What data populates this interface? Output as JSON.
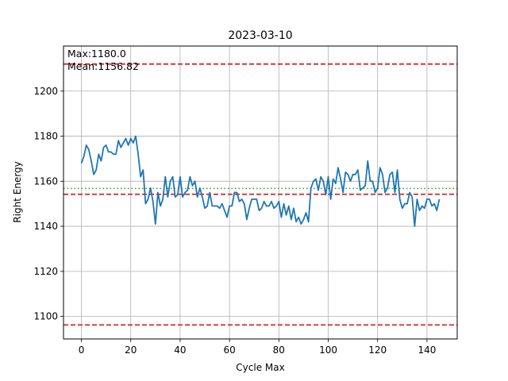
{
  "chart_data": {
    "type": "line",
    "title": "2023-03-10",
    "xlabel": "Cycle Max",
    "ylabel": "Right Energy",
    "xlim": [
      -7.25,
      152.25
    ],
    "ylim": [
      1090,
      1220
    ],
    "xticks": [
      0,
      20,
      40,
      60,
      80,
      100,
      120,
      140
    ],
    "yticks": [
      1100,
      1120,
      1140,
      1160,
      1180,
      1200
    ],
    "grid": true,
    "annotations": [
      "Max:1180.0",
      "Mean:1156.82"
    ],
    "reference_lines": [
      {
        "value": 1212.0,
        "style": "dashed",
        "color": "#d62728"
      },
      {
        "value": 1154.2,
        "style": "dashed",
        "color": "#d62728"
      },
      {
        "value": 1096.2,
        "style": "dashed",
        "color": "#d62728"
      },
      {
        "value": 1156.82,
        "style": "dotted",
        "color": "#2ca02c"
      }
    ],
    "series": [
      {
        "color": "#1f77b4",
        "x": [
          0,
          1,
          2,
          3,
          4,
          5,
          6,
          7,
          8,
          9,
          10,
          11,
          12,
          13,
          14,
          15,
          16,
          17,
          18,
          19,
          20,
          21,
          22,
          23,
          24,
          25,
          26,
          27,
          28,
          29,
          30,
          31,
          32,
          33,
          34,
          35,
          36,
          37,
          38,
          39,
          40,
          41,
          42,
          43,
          44,
          45,
          46,
          47,
          48,
          49,
          50,
          51,
          52,
          53,
          54,
          55,
          56,
          57,
          58,
          59,
          60,
          61,
          62,
          63,
          64,
          65,
          66,
          67,
          68,
          69,
          70,
          71,
          72,
          73,
          74,
          75,
          76,
          77,
          78,
          79,
          80,
          81,
          82,
          83,
          84,
          85,
          86,
          87,
          88,
          89,
          90,
          91,
          92,
          93,
          94,
          95,
          96,
          97,
          98,
          99,
          100,
          101,
          102,
          103,
          104,
          105,
          106,
          107,
          108,
          109,
          110,
          111,
          112,
          113,
          114,
          115,
          116,
          117,
          118,
          119,
          120,
          121,
          122,
          123,
          124,
          125,
          126,
          127,
          128,
          129,
          130,
          131,
          132,
          133,
          134,
          135,
          136,
          137,
          138,
          139,
          140,
          141,
          142,
          143,
          144,
          145
        ],
        "values": [
          1168,
          1171,
          1176,
          1174,
          1169,
          1163,
          1165,
          1172,
          1169,
          1175,
          1176,
          1173,
          1173,
          1172,
          1172,
          1178,
          1175,
          1177,
          1179,
          1176,
          1179,
          1177,
          1180,
          1172,
          1162,
          1165,
          1150,
          1152,
          1157,
          1151,
          1141,
          1155,
          1149,
          1152,
          1162,
          1153,
          1160,
          1162,
          1153,
          1154,
          1162,
          1153,
          1155,
          1156,
          1162,
          1158,
          1160,
          1153,
          1157,
          1153,
          1148,
          1149,
          1155,
          1149,
          1149,
          1149,
          1148,
          1150,
          1147,
          1144,
          1149,
          1149,
          1155,
          1155,
          1151,
          1152,
          1150,
          1143,
          1148,
          1152,
          1152,
          1152,
          1147,
          1148,
          1151,
          1149,
          1149,
          1151,
          1148,
          1149,
          1151,
          1144,
          1150,
          1145,
          1149,
          1143,
          1148,
          1142,
          1144,
          1141,
          1143,
          1146,
          1142,
          1157,
          1160,
          1161,
          1156,
          1162,
          1160,
          1154,
          1162,
          1152,
          1161,
          1159,
          1166,
          1161,
          1155,
          1164,
          1163,
          1160,
          1163,
          1163,
          1165,
          1156,
          1157,
          1158,
          1169,
          1160,
          1160,
          1155,
          1157,
          1166,
          1163,
          1155,
          1157,
          1163,
          1164,
          1155,
          1165,
          1152,
          1148,
          1150,
          1150,
          1155,
          1153,
          1140,
          1152,
          1147,
          1149,
          1148,
          1152,
          1152,
          1149,
          1150,
          1147,
          1152
        ]
      }
    ]
  }
}
